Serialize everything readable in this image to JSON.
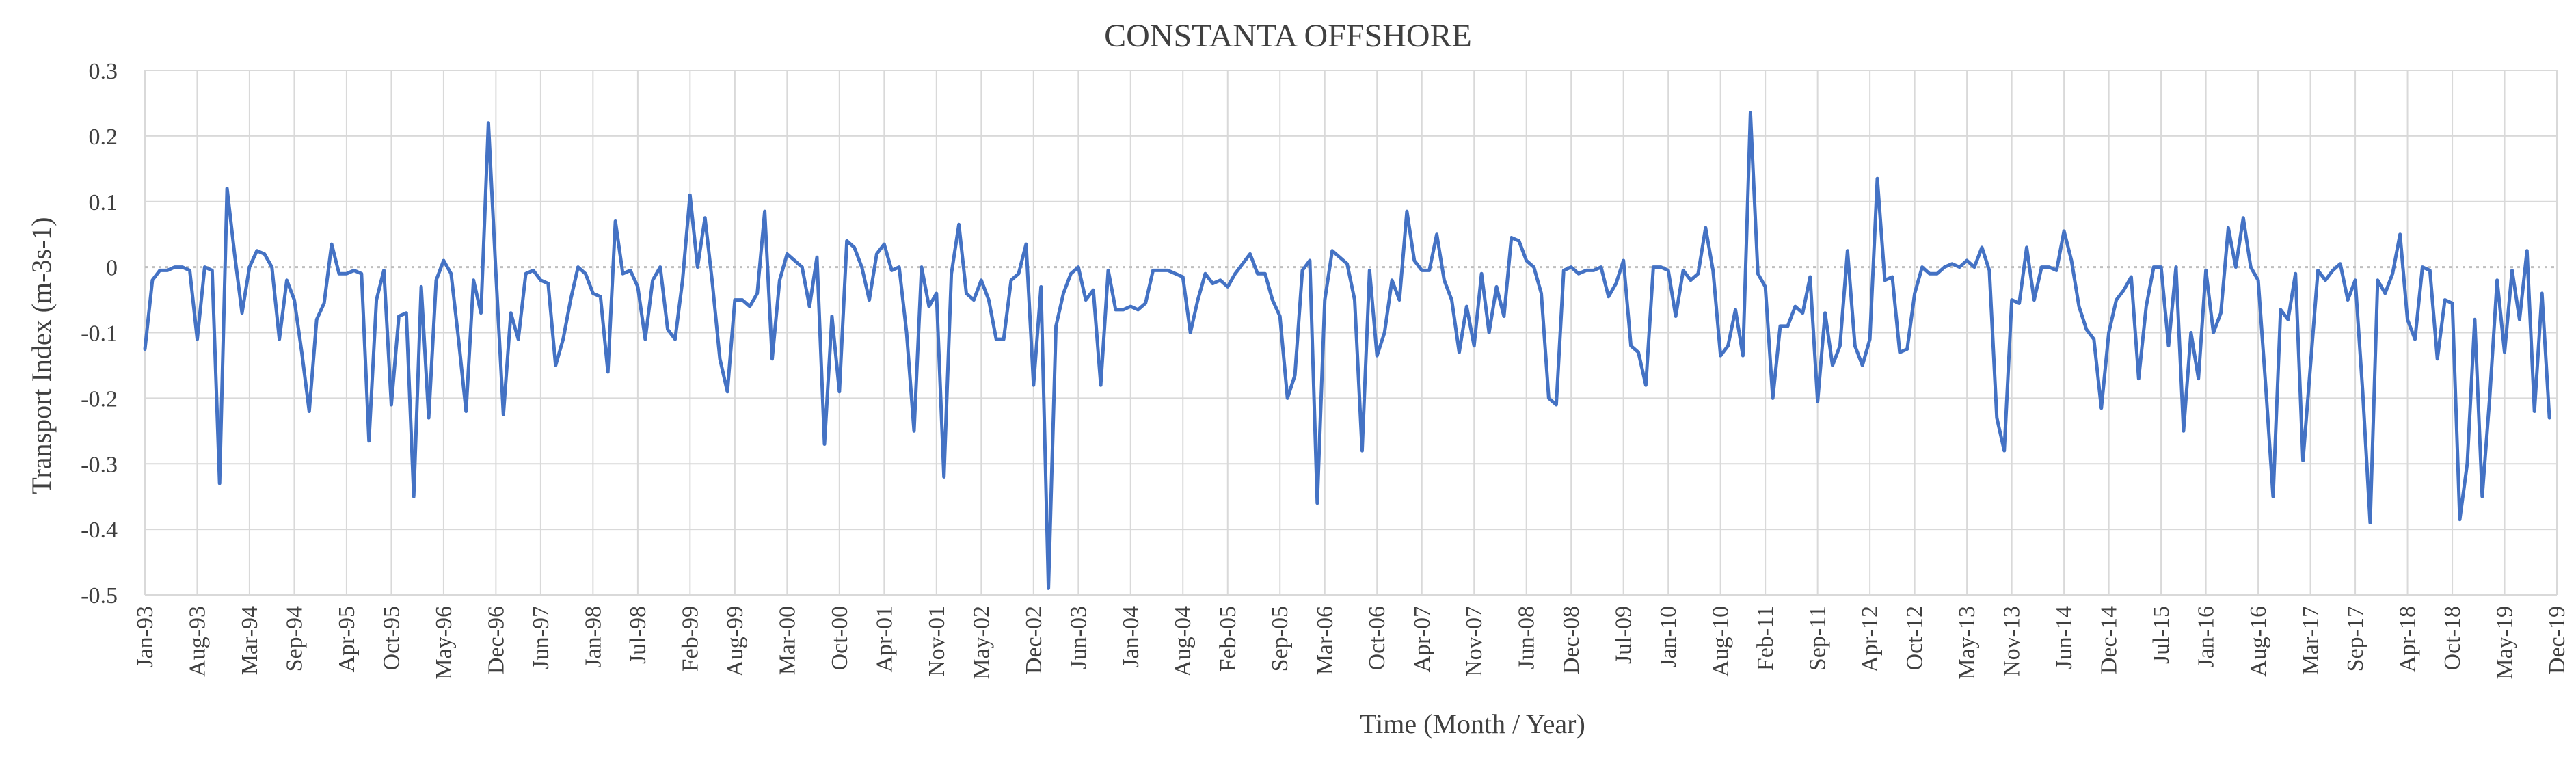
{
  "chart_data": {
    "type": "line",
    "title": "CONSTANTA OFFSHORE",
    "xlabel": "Time (Month / Year)",
    "ylabel": "Transport Index (m-3s-1)",
    "ylim": [
      -0.5,
      0.3
    ],
    "yticks": [
      "0.3",
      "0.2",
      "0.1",
      "0",
      "-0.1",
      "-0.2",
      "-0.3",
      "-0.4",
      "-0.5"
    ],
    "xlim": [
      "1993-01",
      "2019-12"
    ],
    "xticks": [
      "Jan-93",
      "Aug-93",
      "Mar-94",
      "Sep-94",
      "Apr-95",
      "Oct-95",
      "May-96",
      "Dec-96",
      "Jun-97",
      "Jan-98",
      "Jul-98",
      "Feb-99",
      "Aug-99",
      "Mar-00",
      "Oct-00",
      "Apr-01",
      "Nov-01",
      "May-02",
      "Dec-02",
      "Jun-03",
      "Jan-04",
      "Aug-04",
      "Feb-05",
      "Sep-05",
      "Mar-06",
      "Oct-06",
      "Apr-07",
      "Nov-07",
      "Jun-08",
      "Dec-08",
      "Jul-09",
      "Jan-10",
      "Aug-10",
      "Feb-11",
      "Sep-11",
      "Apr-12",
      "Oct-12",
      "May-13",
      "Nov-13",
      "Jun-14",
      "Dec-14",
      "Jul-15",
      "Jan-16",
      "Aug-16",
      "Mar-17",
      "Sep-17",
      "Apr-18",
      "Oct-18",
      "May-19",
      "Dec-19"
    ],
    "grid": "vertical and horizontal",
    "colors": {
      "series": "#4472c4",
      "zero_line": "#bfbfbf"
    },
    "series": [
      {
        "start": "1993-01",
        "frequency": "monthly",
        "values": [
          -0.125,
          -0.02,
          -0.005,
          -0.005,
          0.0,
          0.0,
          -0.005,
          -0.11,
          0.0,
          -0.005,
          -0.33,
          0.12,
          0.02,
          -0.07,
          0.0,
          0.025,
          0.02,
          0.0,
          -0.11,
          -0.02,
          -0.05,
          -0.13,
          -0.22,
          -0.08,
          -0.055,
          0.035,
          -0.01,
          -0.01,
          -0.005,
          -0.01,
          -0.265,
          -0.05,
          -0.005,
          -0.21,
          -0.075,
          -0.07,
          -0.35,
          -0.03,
          -0.23,
          -0.02,
          0.01,
          -0.01,
          -0.11,
          -0.22,
          -0.02,
          -0.07,
          0.22,
          -0.01,
          -0.225,
          -0.07,
          -0.11,
          -0.01,
          -0.005,
          -0.02,
          -0.025,
          -0.15,
          -0.11,
          -0.05,
          0.0,
          -0.01,
          -0.04,
          -0.045,
          -0.16,
          0.07,
          -0.01,
          -0.005,
          -0.03,
          -0.11,
          -0.02,
          0.0,
          -0.095,
          -0.11,
          -0.02,
          0.11,
          0.0,
          0.075,
          -0.025,
          -0.14,
          -0.19,
          -0.05,
          -0.05,
          -0.06,
          -0.04,
          0.085,
          -0.14,
          -0.02,
          0.02,
          0.01,
          0.0,
          -0.06,
          0.015,
          -0.27,
          -0.075,
          -0.19,
          0.04,
          0.03,
          0.0,
          -0.05,
          0.02,
          0.035,
          -0.005,
          0.0,
          -0.1,
          -0.25,
          0.0,
          -0.06,
          -0.04,
          -0.32,
          -0.01,
          0.065,
          -0.04,
          -0.05,
          -0.02,
          -0.05,
          -0.11,
          -0.11,
          -0.02,
          -0.01,
          0.035,
          -0.18,
          -0.03,
          -0.49,
          -0.09,
          -0.04,
          -0.01,
          0.0,
          -0.05,
          -0.035,
          -0.18,
          -0.005,
          -0.065,
          -0.065,
          -0.06,
          -0.065,
          -0.055,
          -0.005,
          -0.005,
          -0.005,
          -0.01,
          -0.015,
          -0.1,
          -0.05,
          -0.01,
          -0.025,
          -0.02,
          -0.03,
          -0.01,
          0.005,
          0.02,
          -0.01,
          -0.01,
          -0.05,
          -0.075,
          -0.2,
          -0.165,
          -0.005,
          0.01,
          -0.36,
          -0.05,
          0.025,
          0.015,
          0.005,
          -0.05,
          -0.28,
          -0.005,
          -0.135,
          -0.1,
          -0.02,
          -0.05,
          0.085,
          0.01,
          -0.005,
          -0.005,
          0.05,
          -0.02,
          -0.05,
          -0.13,
          -0.06,
          -0.12,
          -0.01,
          -0.1,
          -0.03,
          -0.075,
          0.045,
          0.04,
          0.01,
          0.0,
          -0.04,
          -0.2,
          -0.21,
          -0.005,
          0.0,
          -0.01,
          -0.005,
          -0.005,
          0.0,
          -0.045,
          -0.025,
          0.01,
          -0.12,
          -0.13,
          -0.18,
          0.0,
          0.0,
          -0.005,
          -0.075,
          -0.005,
          -0.02,
          -0.01,
          0.06,
          -0.005,
          -0.135,
          -0.12,
          -0.065,
          -0.135,
          0.235,
          -0.01,
          -0.03,
          -0.2,
          -0.09,
          -0.09,
          -0.06,
          -0.07,
          -0.015,
          -0.205,
          -0.07,
          -0.15,
          -0.12,
          0.025,
          -0.12,
          -0.15,
          -0.11,
          0.135,
          -0.02,
          -0.015,
          -0.13,
          -0.125,
          -0.04,
          0.0,
          -0.01,
          -0.01,
          0.0,
          0.005,
          0.0,
          0.01,
          0.0,
          0.03,
          -0.005,
          -0.23,
          -0.28,
          -0.05,
          -0.055,
          0.03,
          -0.05,
          0.0,
          0.0,
          -0.005,
          0.055,
          0.01,
          -0.06,
          -0.095,
          -0.11,
          -0.215,
          -0.1,
          -0.05,
          -0.035,
          -0.015,
          -0.17,
          -0.06,
          0.0,
          0.0,
          -0.12,
          0.0,
          -0.25,
          -0.1,
          -0.17,
          -0.005,
          -0.1,
          -0.07,
          0.06,
          0.0,
          0.075,
          0.0,
          -0.02,
          -0.18,
          -0.35,
          -0.065,
          -0.08,
          -0.01,
          -0.295,
          -0.15,
          -0.005,
          -0.02,
          -0.005,
          0.005,
          -0.05,
          -0.02,
          -0.19,
          -0.39,
          -0.02,
          -0.04,
          -0.01,
          0.05,
          -0.08,
          -0.11,
          0.0,
          -0.005,
          -0.14,
          -0.05,
          -0.055,
          -0.385,
          -0.3,
          -0.08,
          -0.35,
          -0.2,
          -0.02,
          -0.13,
          -0.005,
          -0.08,
          0.025,
          -0.22,
          -0.04,
          -0.23
        ]
      }
    ]
  }
}
